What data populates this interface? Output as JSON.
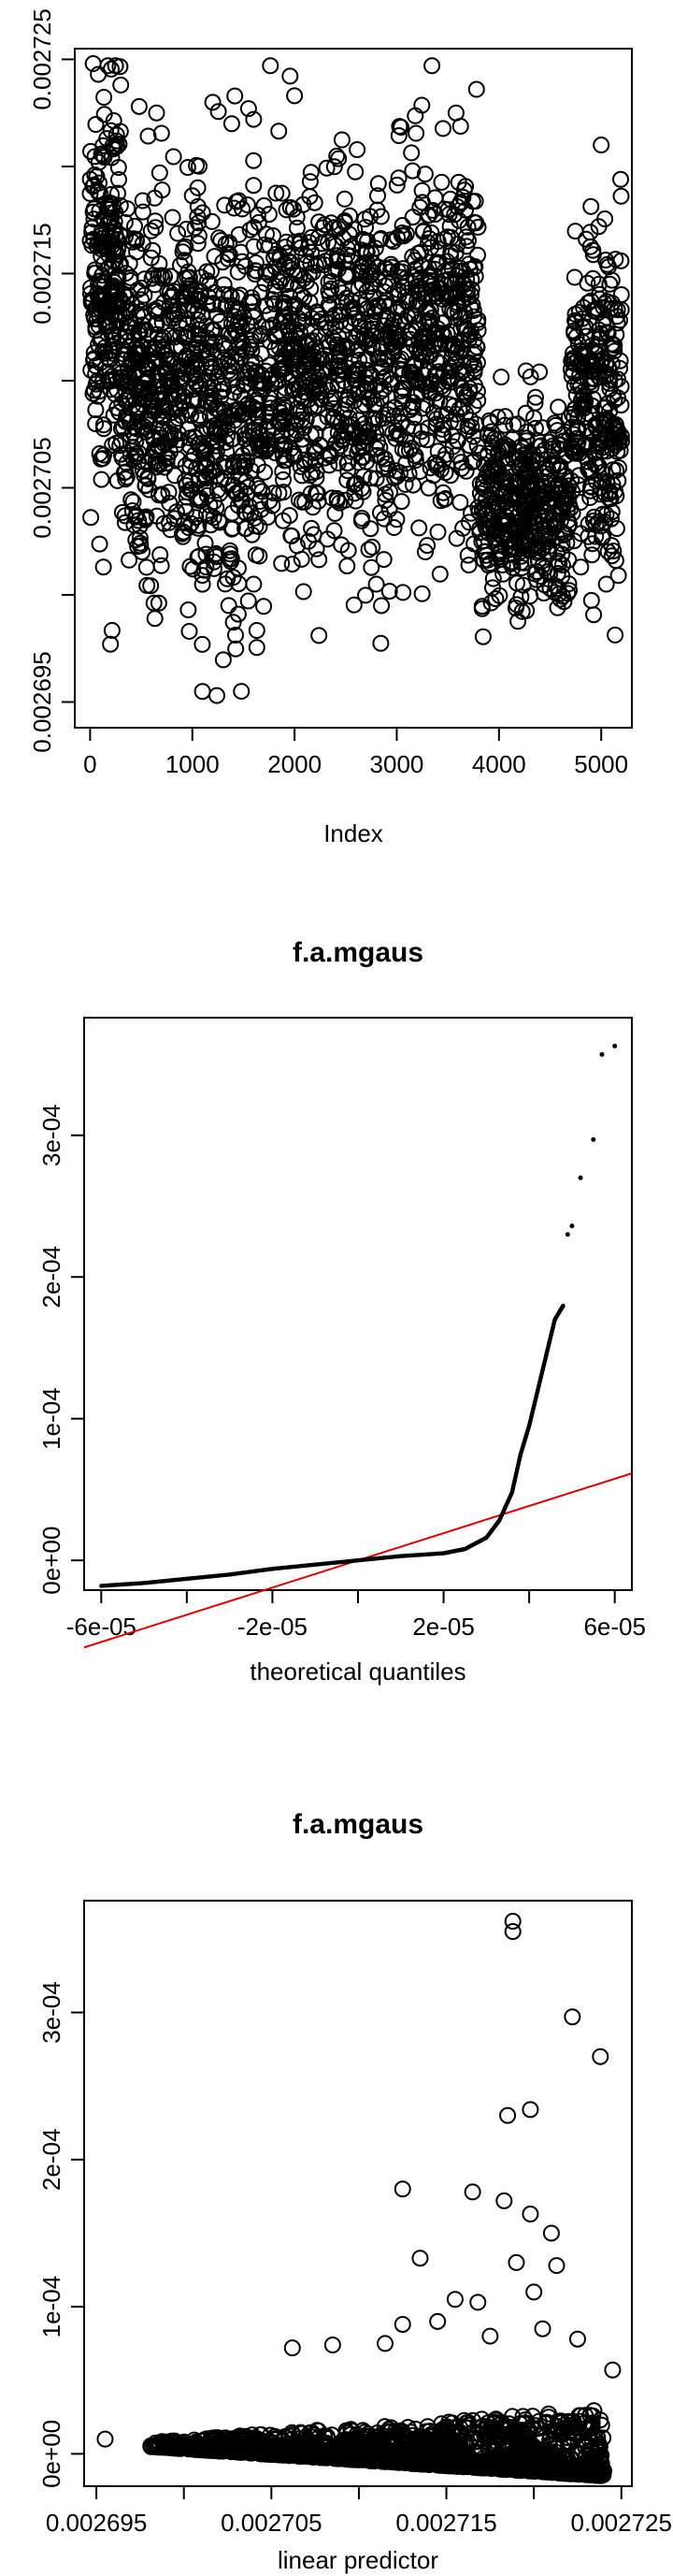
{
  "chart_data": [
    {
      "id": "index-plot",
      "type": "scatter",
      "title": "",
      "xlabel": "Index",
      "ylabel": "",
      "xlim": [
        -150,
        5300
      ],
      "ylim": [
        0.0026938,
        0.0027255
      ],
      "x_ticks": [
        {
          "value": 0,
          "label": "0"
        },
        {
          "value": 1000,
          "label": "1000"
        },
        {
          "value": 2000,
          "label": "2000"
        },
        {
          "value": 3000,
          "label": "3000"
        },
        {
          "value": 4000,
          "label": "4000"
        },
        {
          "value": 5000,
          "label": "5000"
        }
      ],
      "y_ticks": [
        {
          "value": 0.002695,
          "label": "0.002695"
        },
        {
          "value": 0.0027,
          "label": ""
        },
        {
          "value": 0.002705,
          "label": "0.002705"
        },
        {
          "value": 0.00271,
          "label": ""
        },
        {
          "value": 0.002715,
          "label": "0.002715"
        },
        {
          "value": 0.00272,
          "label": ""
        },
        {
          "value": 0.002725,
          "label": "0.002725"
        }
      ],
      "marker": "open-circle",
      "grid": false,
      "segments": [
        {
          "x0": 0,
          "x1": 300,
          "center": 0.002715,
          "spread": 5.5e-06,
          "count": 240
        },
        {
          "x0": 300,
          "x1": 1000,
          "center": 0.00271,
          "spread": 5.5e-06,
          "count": 420
        },
        {
          "x0": 1000,
          "x1": 1700,
          "center": 0.002709,
          "spread": 6e-06,
          "count": 420
        },
        {
          "x0": 1700,
          "x1": 3000,
          "center": 0.002711,
          "spread": 5.5e-06,
          "count": 700
        },
        {
          "x0": 3000,
          "x1": 3800,
          "center": 0.002712,
          "spread": 5.5e-06,
          "count": 440
        },
        {
          "x0": 3800,
          "x1": 4700,
          "center": 0.002704,
          "spread": 3e-06,
          "count": 420
        },
        {
          "x0": 4700,
          "x1": 5200,
          "center": 0.002709,
          "spread": 5e-06,
          "count": 300
        }
      ],
      "extremes": [
        {
          "x": 30,
          "y": 0.0027248
        },
        {
          "x": 80,
          "y": 0.0027243
        },
        {
          "x": 300,
          "y": 0.0027238
        },
        {
          "x": 480,
          "y": 0.0027228
        },
        {
          "x": 650,
          "y": 0.0027225
        },
        {
          "x": 1550,
          "y": 0.0027227
        },
        {
          "x": 1600,
          "y": 0.0027222
        },
        {
          "x": 2000,
          "y": 0.0027233
        },
        {
          "x": 3780,
          "y": 0.0027236
        },
        {
          "x": 3580,
          "y": 0.0027225
        },
        {
          "x": 5000,
          "y": 0.002721
        },
        {
          "x": 1480,
          "y": 0.0026955
        },
        {
          "x": 960,
          "y": 0.0026993
        },
        {
          "x": 970,
          "y": 0.0026983
        },
        {
          "x": 2850,
          "y": 0.0026995
        },
        {
          "x": 2800,
          "y": 0.0027005
        },
        {
          "x": 4600,
          "y": 0.0026998
        },
        {
          "x": 4500,
          "y": 0.0027003
        },
        {
          "x": 5050,
          "y": 0.0027005
        },
        {
          "x": 130,
          "y": 0.0027013
        },
        {
          "x": 1600,
          "y": 0.0027005
        }
      ]
    },
    {
      "id": "qq-plot",
      "type": "scatter",
      "title": "f.a.mgaus",
      "xlabel": "theoretical quantiles",
      "ylabel": "",
      "xlim": [
        -6.4e-05,
        6.4e-05
      ],
      "ylim": [
        -2.1e-05,
        0.000383
      ],
      "x_ticks": [
        {
          "value": -6e-05,
          "label": "-6e-05"
        },
        {
          "value": -4e-05,
          "label": ""
        },
        {
          "value": -2e-05,
          "label": "-2e-05"
        },
        {
          "value": 0,
          "label": ""
        },
        {
          "value": 2e-05,
          "label": "2e-05"
        },
        {
          "value": 4e-05,
          "label": ""
        },
        {
          "value": 6e-05,
          "label": "6e-05"
        }
      ],
      "y_ticks": [
        {
          "value": 0,
          "label": "0e+00"
        },
        {
          "value": 0.0001,
          "label": "1e-04"
        },
        {
          "value": 0.0002,
          "label": "2e-04"
        },
        {
          "value": 0.0003,
          "label": "3e-04"
        }
      ],
      "marker": "small-dot",
      "grid": false,
      "sample_curve": [
        [
          -6e-05,
          -1.8e-05
        ],
        [
          -5e-05,
          -1.6e-05
        ],
        [
          -4e-05,
          -1.3e-05
        ],
        [
          -3e-05,
          -1e-05
        ],
        [
          -2e-05,
          -6e-06
        ],
        [
          -1e-05,
          -3e-06
        ],
        [
          0,
          0
        ],
        [
          1e-05,
          3e-06
        ],
        [
          2e-05,
          5e-06
        ],
        [
          2.5e-05,
          8e-06
        ],
        [
          3e-05,
          1.6e-05
        ],
        [
          3.3e-05,
          2.8e-05
        ],
        [
          3.6e-05,
          4.8e-05
        ],
        [
          3.8e-05,
          7.5e-05
        ],
        [
          4e-05,
          9.5e-05
        ],
        [
          4.2e-05,
          0.00012
        ],
        [
          4.4e-05,
          0.000145
        ],
        [
          4.6e-05,
          0.00017
        ],
        [
          4.8e-05,
          0.00018
        ]
      ],
      "outliers": [
        [
          4.9e-05,
          0.00023
        ],
        [
          5e-05,
          0.000236
        ],
        [
          5.2e-05,
          0.00027
        ],
        [
          5.5e-05,
          0.000297
        ],
        [
          5.7e-05,
          0.000357
        ],
        [
          6e-05,
          0.000363
        ]
      ],
      "reference_line": {
        "color": "#e00000",
        "slope": 0.96,
        "intercept": 0.0
      }
    },
    {
      "id": "residual-plot",
      "type": "scatter",
      "title": "f.a.mgaus",
      "xlabel": "linear predictor",
      "ylabel": "",
      "xlim": [
        0.0026943,
        0.0027256
      ],
      "ylim": [
        -2.2e-05,
        0.000376
      ],
      "x_ticks": [
        {
          "value": 0.002695,
          "label": "0.002695"
        },
        {
          "value": 0.0027,
          "label": ""
        },
        {
          "value": 0.002705,
          "label": "0.002705"
        },
        {
          "value": 0.00271,
          "label": ""
        },
        {
          "value": 0.002715,
          "label": "0.002715"
        },
        {
          "value": 0.00272,
          "label": ""
        },
        {
          "value": 0.002725,
          "label": "0.002725"
        }
      ],
      "y_ticks": [
        {
          "value": 0,
          "label": "0e+00"
        },
        {
          "value": 0.0001,
          "label": "1e-04"
        },
        {
          "value": 0.0002,
          "label": "2e-04"
        },
        {
          "value": 0.0003,
          "label": "3e-04"
        }
      ],
      "marker": "open-circle",
      "grid": false,
      "band": {
        "x0": 0.002698,
        "x1": 0.002724,
        "y_top_start": 8e-06,
        "y_top_end": 3e-05,
        "y_bottom_start": 5e-06,
        "y_bottom_end": -1.5e-05,
        "count": 1400
      },
      "outliers": [
        [
          0.0026955,
          1e-05
        ],
        [
          0.0027188,
          0.000362
        ],
        [
          0.0027188,
          0.000355
        ],
        [
          0.0027222,
          0.000297
        ],
        [
          0.0027238,
          0.00027
        ],
        [
          0.0027198,
          0.000234
        ],
        [
          0.0027185,
          0.00023
        ],
        [
          0.0027165,
          0.000178
        ],
        [
          0.0027183,
          0.000172
        ],
        [
          0.0027125,
          0.00018
        ],
        [
          0.0027198,
          0.000163
        ],
        [
          0.0027213,
          0.000128
        ],
        [
          0.0027135,
          0.000133
        ],
        [
          0.0027155,
          0.000105
        ],
        [
          0.0027168,
          0.000103
        ],
        [
          0.0027145,
          9e-05
        ],
        [
          0.0027125,
          8.8e-05
        ],
        [
          0.0027085,
          7.4e-05
        ],
        [
          0.0027115,
          7.5e-05
        ],
        [
          0.0027175,
          8e-05
        ],
        [
          0.0027205,
          8.5e-05
        ],
        [
          0.0027225,
          7.8e-05
        ],
        [
          0.0027245,
          5.7e-05
        ],
        [
          0.0027062,
          7.2e-05
        ],
        [
          0.002721,
          0.00015
        ],
        [
          0.002719,
          0.00013
        ],
        [
          0.00272,
          0.00011
        ]
      ]
    }
  ]
}
